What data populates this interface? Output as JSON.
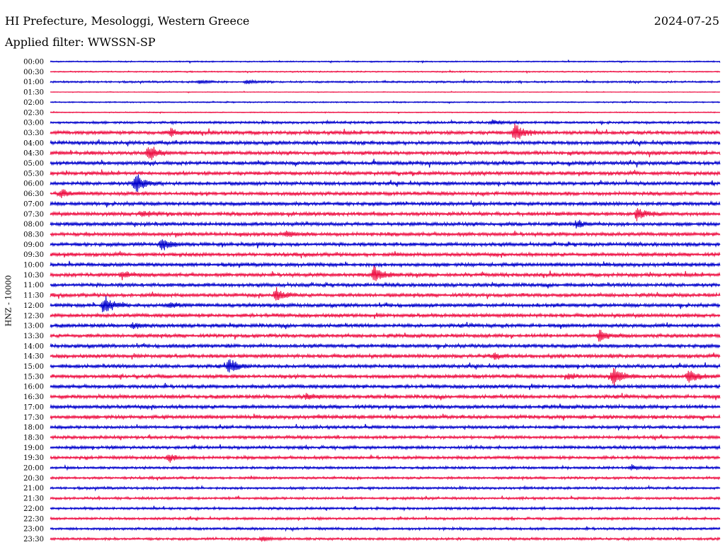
{
  "header": {
    "title": "HI Prefecture, Mesologgi, Western Greece",
    "date": "2024-07-25",
    "filter": "Applied filter: WWSSN-SP"
  },
  "chart_data": {
    "type": "line",
    "title": "HI Prefecture, Mesologgi, Western Greece",
    "subtitle": "Applied filter: WWSSN-SP",
    "ylabel": "HNZ - 10000",
    "xlabel": "",
    "row_labels": [
      "00:00",
      "00:30",
      "01:00",
      "01:30",
      "02:00",
      "02:30",
      "03:00",
      "03:30",
      "04:00",
      "04:30",
      "05:00",
      "05:30",
      "06:00",
      "06:30",
      "07:00",
      "07:30",
      "08:00",
      "08:30",
      "09:00",
      "09:30",
      "10:00",
      "10:30",
      "11:00",
      "11:30",
      "12:00",
      "12:30",
      "13:00",
      "13:30",
      "14:00",
      "14:30",
      "15:00",
      "15:30",
      "16:00",
      "16:30",
      "17:00",
      "17:30",
      "18:00",
      "18:30",
      "19:00",
      "19:30",
      "20:00",
      "20:30",
      "21:00",
      "21:30",
      "22:00",
      "22:30",
      "23:00",
      "23:30"
    ],
    "row_noise": [
      1,
      1,
      1.5,
      0.5,
      1,
      0.8,
      2,
      3,
      3,
      3,
      3,
      3,
      3,
      3,
      3,
      3,
      3,
      3,
      3,
      3,
      3,
      3,
      3,
      3,
      3,
      3,
      3,
      3,
      3,
      3,
      3,
      3,
      3,
      3,
      3,
      3,
      2.5,
      2.5,
      2.5,
      2.5,
      2,
      2,
      2,
      2,
      2,
      2,
      2,
      2
    ],
    "colors": [
      "#0000cc",
      "#ee1144"
    ],
    "events": [
      {
        "row": 2,
        "minute": 6.7,
        "amp": 3
      },
      {
        "row": 2,
        "minute": 8.8,
        "amp": 4
      },
      {
        "row": 6,
        "minute": 19.8,
        "amp": 4
      },
      {
        "row": 7,
        "minute": 5.4,
        "amp": 6
      },
      {
        "row": 7,
        "minute": 20.8,
        "amp": 16
      },
      {
        "row": 9,
        "minute": 4.4,
        "amp": 14
      },
      {
        "row": 12,
        "minute": 3.8,
        "amp": 16
      },
      {
        "row": 13,
        "minute": 0.5,
        "amp": 8
      },
      {
        "row": 15,
        "minute": 4.1,
        "amp": 5
      },
      {
        "row": 15,
        "minute": 26.3,
        "amp": 12
      },
      {
        "row": 16,
        "minute": 23.6,
        "amp": 6
      },
      {
        "row": 17,
        "minute": 10.6,
        "amp": 5
      },
      {
        "row": 18,
        "minute": 5.0,
        "amp": 10
      },
      {
        "row": 21,
        "minute": 3.2,
        "amp": 7
      },
      {
        "row": 21,
        "minute": 14.5,
        "amp": 16
      },
      {
        "row": 23,
        "minute": 10.1,
        "amp": 10
      },
      {
        "row": 24,
        "minute": 2.4,
        "amp": 16
      },
      {
        "row": 24,
        "minute": 5.3,
        "amp": 4
      },
      {
        "row": 26,
        "minute": 3.7,
        "amp": 4
      },
      {
        "row": 27,
        "minute": 24.6,
        "amp": 9
      },
      {
        "row": 29,
        "minute": 19.9,
        "amp": 4
      },
      {
        "row": 31,
        "minute": 23.2,
        "amp": 5
      },
      {
        "row": 31,
        "minute": 25.2,
        "amp": 16
      },
      {
        "row": 31,
        "minute": 28.6,
        "amp": 12
      },
      {
        "row": 30,
        "minute": 8.0,
        "amp": 12
      },
      {
        "row": 33,
        "minute": 11.5,
        "amp": 5
      },
      {
        "row": 39,
        "minute": 5.3,
        "amp": 6
      },
      {
        "row": 40,
        "minute": 26.0,
        "amp": 4
      },
      {
        "row": 47,
        "minute": 9.5,
        "amp": 5
      }
    ],
    "x_minutes": 30,
    "grid": false,
    "legend": "none"
  }
}
